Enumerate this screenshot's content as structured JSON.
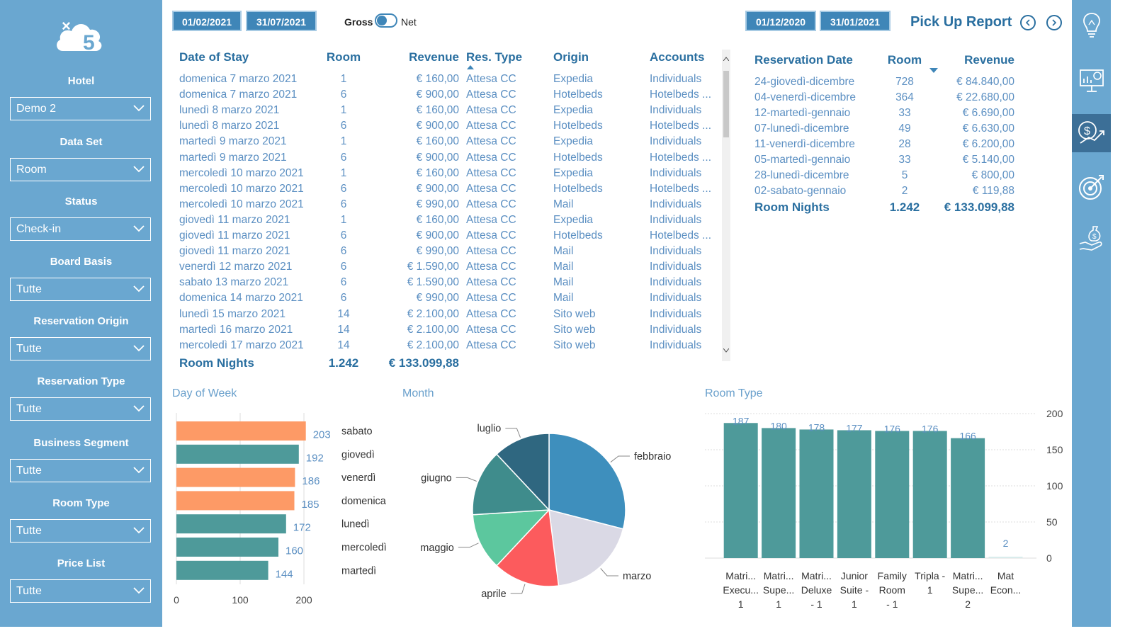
{
  "filters": [
    {
      "label": "Hotel",
      "value": "Demo 2"
    },
    {
      "label": "Data Set",
      "value": "Room"
    },
    {
      "label": "Status",
      "value": "Check-in"
    },
    {
      "label": "Board Basis",
      "value": "Tutte"
    },
    {
      "label": "Reservation Origin",
      "value": "Tutte"
    },
    {
      "label": "Reservation Type",
      "value": "Tutte"
    },
    {
      "label": "Business Segment",
      "value": "Tutte"
    },
    {
      "label": "Room Type",
      "value": "Tutte"
    },
    {
      "label": "Price List",
      "value": "Tutte"
    }
  ],
  "header": {
    "stay_from": "01/02/2021",
    "stay_to": "31/07/2021",
    "gross_label": "Gross",
    "net_label": "Net",
    "res_from": "01/12/2020",
    "res_to": "31/01/2021",
    "title": "Pick Up Report"
  },
  "stay_table": {
    "headers": [
      "Date of Stay",
      "Room",
      "Revenue",
      "Res. Type",
      "Origin",
      "Accounts"
    ],
    "rows": [
      [
        "domenica 7 marzo 2021",
        "1",
        "€ 160,00",
        "Attesa CC",
        "Expedia",
        "Individuals"
      ],
      [
        "domenica 7 marzo 2021",
        "6",
        "€ 900,00",
        "Attesa CC",
        "Hotelbeds",
        "Hotelbeds ..."
      ],
      [
        "lunedì 8 marzo 2021",
        "1",
        "€ 160,00",
        "Attesa CC",
        "Expedia",
        "Individuals"
      ],
      [
        "lunedì 8 marzo 2021",
        "6",
        "€ 900,00",
        "Attesa CC",
        "Hotelbeds",
        "Hotelbeds ..."
      ],
      [
        "martedì 9 marzo 2021",
        "1",
        "€ 160,00",
        "Attesa CC",
        "Expedia",
        "Individuals"
      ],
      [
        "martedì 9 marzo 2021",
        "6",
        "€ 900,00",
        "Attesa CC",
        "Hotelbeds",
        "Hotelbeds ..."
      ],
      [
        "mercoledì 10 marzo 2021",
        "1",
        "€ 160,00",
        "Attesa CC",
        "Expedia",
        "Individuals"
      ],
      [
        "mercoledì 10 marzo 2021",
        "6",
        "€ 900,00",
        "Attesa CC",
        "Hotelbeds",
        "Hotelbeds ..."
      ],
      [
        "mercoledì 10 marzo 2021",
        "6",
        "€ 990,00",
        "Attesa CC",
        "Mail",
        "Individuals"
      ],
      [
        "giovedì 11 marzo 2021",
        "1",
        "€ 160,00",
        "Attesa CC",
        "Expedia",
        "Individuals"
      ],
      [
        "giovedì 11 marzo 2021",
        "6",
        "€ 900,00",
        "Attesa CC",
        "Hotelbeds",
        "Hotelbeds ..."
      ],
      [
        "giovedì 11 marzo 2021",
        "6",
        "€ 990,00",
        "Attesa CC",
        "Mail",
        "Individuals"
      ],
      [
        "venerdì 12 marzo 2021",
        "6",
        "€ 1.590,00",
        "Attesa CC",
        "Mail",
        "Individuals"
      ],
      [
        "sabato 13 marzo 2021",
        "6",
        "€ 1.590,00",
        "Attesa CC",
        "Mail",
        "Individuals"
      ],
      [
        "domenica 14 marzo 2021",
        "6",
        "€ 990,00",
        "Attesa CC",
        "Mail",
        "Individuals"
      ],
      [
        "lunedì 15 marzo 2021",
        "14",
        "€ 2.100,00",
        "Attesa CC",
        "Sito web",
        "Individuals"
      ],
      [
        "martedì 16 marzo 2021",
        "14",
        "€ 2.100,00",
        "Attesa CC",
        "Sito web",
        "Individuals"
      ],
      [
        "mercoledì 17 marzo 2021",
        "14",
        "€ 2.100,00",
        "Attesa CC",
        "Sito web",
        "Individuals"
      ]
    ],
    "total": {
      "label": "Room Nights",
      "room": "1.242",
      "revenue": "€ 133.099,88"
    }
  },
  "res_table": {
    "headers": [
      "Reservation Date",
      "Room",
      "Revenue"
    ],
    "rows": [
      [
        "24-giovedì-dicembre",
        "728",
        "€ 84.840,00"
      ],
      [
        "04-venerdì-dicembre",
        "364",
        "€ 22.680,00"
      ],
      [
        "12-martedì-gennaio",
        "33",
        "€ 6.690,00"
      ],
      [
        "07-lunedì-dicembre",
        "49",
        "€ 6.630,00"
      ],
      [
        "11-venerdì-dicembre",
        "28",
        "€ 6.200,00"
      ],
      [
        "05-martedì-gennaio",
        "33",
        "€ 5.140,00"
      ],
      [
        "28-lunedì-dicembre",
        "5",
        "€ 800,00"
      ],
      [
        "02-sabato-gennaio",
        "2",
        "€ 119,88"
      ]
    ],
    "total": {
      "label": "Room Nights",
      "room": "1.242",
      "revenue": "€ 133.099,88"
    }
  },
  "chart_data": [
    {
      "type": "bar",
      "orientation": "horizontal",
      "title": "Day of Week",
      "categories": [
        "sabato",
        "giovedì",
        "venerdì",
        "domenica",
        "lunedì",
        "mercoledì",
        "martedì"
      ],
      "values": [
        203,
        192,
        186,
        185,
        172,
        160,
        144
      ],
      "colors": [
        "#fd9a66",
        "#4e9a9a",
        "#fd9a66",
        "#fd9a66",
        "#4e9a9a",
        "#4e9a9a",
        "#4e9a9a"
      ],
      "xticks": [
        0,
        100,
        200
      ],
      "xlim": [
        0,
        200
      ]
    },
    {
      "type": "pie",
      "title": "Month",
      "categories": [
        "febbraio",
        "marzo",
        "aprile",
        "maggio",
        "giugno",
        "luglio"
      ],
      "values": [
        29,
        19,
        14,
        12,
        14,
        12
      ],
      "colors": [
        "#3e8fbd",
        "#dad9e5",
        "#fc5b5d",
        "#5cc79e",
        "#3f8c8c",
        "#2f6780"
      ]
    },
    {
      "type": "bar",
      "orientation": "vertical",
      "title": "Room Type",
      "categories": [
        "Matri... Execu... 1",
        "Matri... Supe... 1",
        "Matri... Deluxe - 1",
        "Junior Suite - 1",
        "Family Room - 1",
        "Tripla - 1",
        "Matri... Supe... 2",
        "Mat Econ..."
      ],
      "category_lines": [
        [
          "Matri...",
          "Execu...",
          "1"
        ],
        [
          "Matri...",
          "Supe...",
          "1"
        ],
        [
          "Matri...",
          "Deluxe",
          "- 1"
        ],
        [
          "Junior",
          "Suite -",
          "1"
        ],
        [
          "Family",
          "Room",
          "- 1"
        ],
        [
          "Tripla -",
          "1",
          ""
        ],
        [
          "Matri...",
          "Supe...",
          "2"
        ],
        [
          "Mat",
          "Econ...",
          ""
        ]
      ],
      "values": [
        187,
        180,
        178,
        177,
        176,
        176,
        166,
        2
      ],
      "yticks": [
        0,
        50,
        100,
        150,
        200
      ],
      "ylim": [
        0,
        200
      ],
      "color": "#4e9a9a"
    }
  ],
  "icons": {
    "logo": "cloud-x5-logo",
    "side": [
      "lightbulb-icon",
      "presentation-chart-icon",
      "dollar-chart-icon",
      "target-icon",
      "money-hand-icon"
    ]
  }
}
